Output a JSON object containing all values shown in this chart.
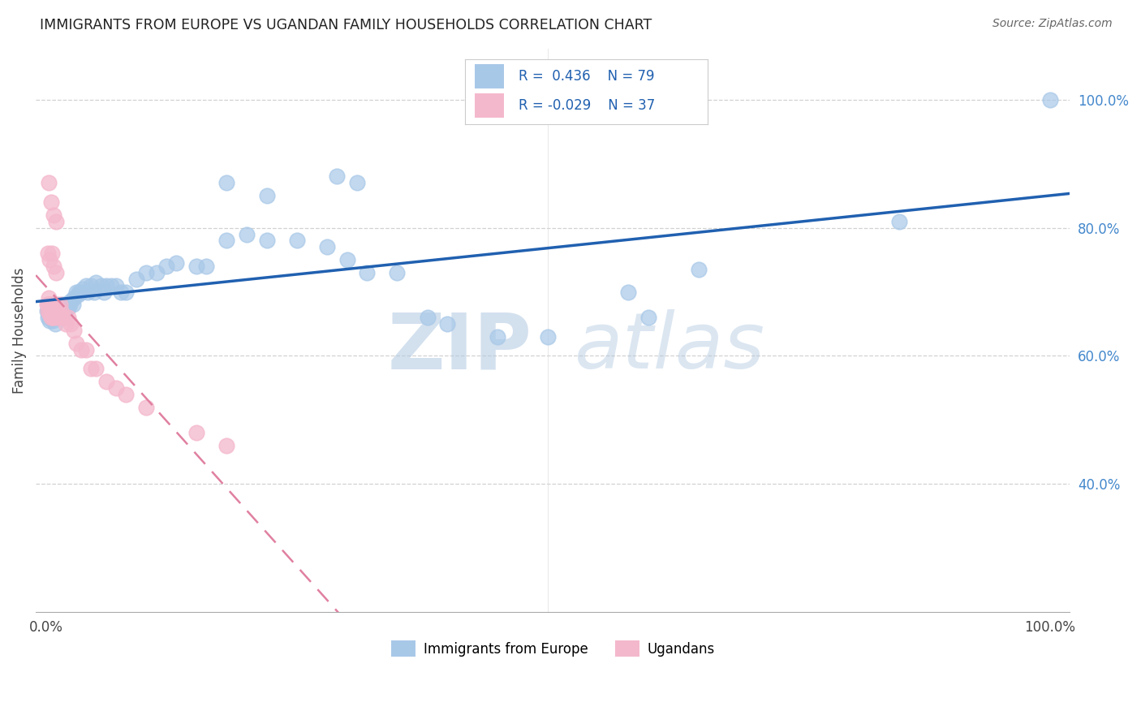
{
  "title": "IMMIGRANTS FROM EUROPE VS UGANDAN FAMILY HOUSEHOLDS CORRELATION CHART",
  "source": "Source: ZipAtlas.com",
  "ylabel": "Family Households",
  "legend_blue_label": "Immigrants from Europe",
  "legend_pink_label": "Ugandans",
  "R_blue": 0.436,
  "N_blue": 79,
  "R_pink": -0.029,
  "N_pink": 37,
  "blue_color": "#a8c8e8",
  "pink_color": "#f4b8cc",
  "blue_line_color": "#2060b0",
  "pink_line_color": "#e080a0",
  "watermark_zip": "ZIP",
  "watermark_atlas": "atlas",
  "blue_x": [
    0.001,
    0.002,
    0.002,
    0.003,
    0.003,
    0.004,
    0.004,
    0.005,
    0.005,
    0.006,
    0.006,
    0.007,
    0.007,
    0.008,
    0.008,
    0.009,
    0.009,
    0.01,
    0.01,
    0.011,
    0.012,
    0.013,
    0.014,
    0.015,
    0.016,
    0.017,
    0.018,
    0.019,
    0.02,
    0.022,
    0.024,
    0.025,
    0.027,
    0.028,
    0.03,
    0.032,
    0.033,
    0.035,
    0.037,
    0.04,
    0.042,
    0.045,
    0.048,
    0.05,
    0.055,
    0.058,
    0.06,
    0.065,
    0.07,
    0.075,
    0.08,
    0.09,
    0.1,
    0.11,
    0.12,
    0.13,
    0.15,
    0.16,
    0.18,
    0.2,
    0.22,
    0.25,
    0.28,
    0.3,
    0.32,
    0.35,
    0.38,
    0.4,
    0.45,
    0.5,
    0.58,
    0.6,
    0.65,
    0.85,
    1.0,
    0.29,
    0.31,
    0.18,
    0.22
  ],
  "blue_y": [
    0.67,
    0.66,
    0.67,
    0.665,
    0.68,
    0.655,
    0.675,
    0.66,
    0.68,
    0.665,
    0.67,
    0.655,
    0.68,
    0.66,
    0.675,
    0.65,
    0.67,
    0.66,
    0.68,
    0.665,
    0.67,
    0.66,
    0.675,
    0.67,
    0.665,
    0.68,
    0.66,
    0.67,
    0.68,
    0.675,
    0.68,
    0.685,
    0.68,
    0.69,
    0.7,
    0.695,
    0.7,
    0.7,
    0.705,
    0.71,
    0.7,
    0.71,
    0.7,
    0.715,
    0.71,
    0.7,
    0.71,
    0.71,
    0.71,
    0.7,
    0.7,
    0.72,
    0.73,
    0.73,
    0.74,
    0.745,
    0.74,
    0.74,
    0.78,
    0.79,
    0.78,
    0.78,
    0.77,
    0.75,
    0.73,
    0.73,
    0.66,
    0.65,
    0.63,
    0.63,
    0.7,
    0.66,
    0.735,
    0.81,
    1.0,
    0.88,
    0.87,
    0.87,
    0.85
  ],
  "pink_x": [
    0.001,
    0.002,
    0.002,
    0.003,
    0.003,
    0.004,
    0.004,
    0.005,
    0.005,
    0.006,
    0.006,
    0.007,
    0.007,
    0.008,
    0.009,
    0.01,
    0.011,
    0.012,
    0.014,
    0.015,
    0.016,
    0.018,
    0.02,
    0.022,
    0.025,
    0.028,
    0.03,
    0.035,
    0.04,
    0.045,
    0.05,
    0.06,
    0.07,
    0.08,
    0.1,
    0.15,
    0.18
  ],
  "pink_y": [
    0.68,
    0.68,
    0.67,
    0.68,
    0.69,
    0.665,
    0.68,
    0.67,
    0.66,
    0.68,
    0.67,
    0.66,
    0.68,
    0.66,
    0.67,
    0.68,
    0.67,
    0.66,
    0.68,
    0.67,
    0.66,
    0.66,
    0.65,
    0.66,
    0.65,
    0.64,
    0.62,
    0.61,
    0.61,
    0.58,
    0.58,
    0.56,
    0.55,
    0.54,
    0.52,
    0.48,
    0.46
  ],
  "pink_extra_x": [
    0.003,
    0.005,
    0.008,
    0.01,
    0.002,
    0.004,
    0.006,
    0.008,
    0.01
  ],
  "pink_extra_y": [
    0.87,
    0.84,
    0.82,
    0.81,
    0.76,
    0.75,
    0.76,
    0.74,
    0.73
  ],
  "xlim_min": -0.01,
  "xlim_max": 1.02,
  "ylim_min": 0.2,
  "ylim_max": 1.08,
  "ytick_vals": [
    1.0,
    0.8,
    0.6,
    0.4
  ],
  "ytick_labels": [
    "100.0%",
    "80.0%",
    "60.0%",
    "40.0%"
  ],
  "xtick_vals": [
    0.0,
    1.0
  ],
  "xtick_labels": [
    "0.0%",
    "100.0%"
  ]
}
